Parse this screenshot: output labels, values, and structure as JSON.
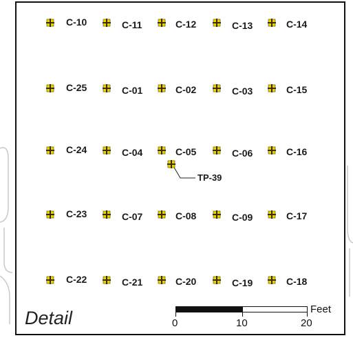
{
  "map": {
    "title": "Detail",
    "scale": {
      "unit": "Feet",
      "ticks": [
        "0",
        "10",
        "20"
      ]
    },
    "colors": {
      "marker_fill": "#e8d800",
      "marker_cross": "#3a2a00",
      "frame": "#111111"
    },
    "points": [
      {
        "id": "C-10",
        "row": 0,
        "col": 0
      },
      {
        "id": "C-11",
        "row": 0,
        "col": 1
      },
      {
        "id": "C-12",
        "row": 0,
        "col": 2
      },
      {
        "id": "C-13",
        "row": 0,
        "col": 3
      },
      {
        "id": "C-14",
        "row": 0,
        "col": 4
      },
      {
        "id": "C-25",
        "row": 1,
        "col": 0
      },
      {
        "id": "C-01",
        "row": 1,
        "col": 1
      },
      {
        "id": "C-02",
        "row": 1,
        "col": 2
      },
      {
        "id": "C-03",
        "row": 1,
        "col": 3
      },
      {
        "id": "C-15",
        "row": 1,
        "col": 4
      },
      {
        "id": "C-24",
        "row": 2,
        "col": 0
      },
      {
        "id": "C-04",
        "row": 2,
        "col": 1
      },
      {
        "id": "C-05",
        "row": 2,
        "col": 2
      },
      {
        "id": "C-06",
        "row": 2,
        "col": 3
      },
      {
        "id": "C-16",
        "row": 2,
        "col": 4
      },
      {
        "id": "C-23",
        "row": 3,
        "col": 0
      },
      {
        "id": "C-07",
        "row": 3,
        "col": 1
      },
      {
        "id": "C-08",
        "row": 3,
        "col": 2
      },
      {
        "id": "C-09",
        "row": 3,
        "col": 3
      },
      {
        "id": "C-17",
        "row": 3,
        "col": 4
      },
      {
        "id": "C-22",
        "row": 4,
        "col": 0
      },
      {
        "id": "C-21",
        "row": 4,
        "col": 1
      },
      {
        "id": "C-20",
        "row": 4,
        "col": 2
      },
      {
        "id": "C-19",
        "row": 4,
        "col": 3
      },
      {
        "id": "C-18",
        "row": 4,
        "col": 4
      }
    ],
    "test_pit": {
      "id": "TP-39"
    }
  }
}
